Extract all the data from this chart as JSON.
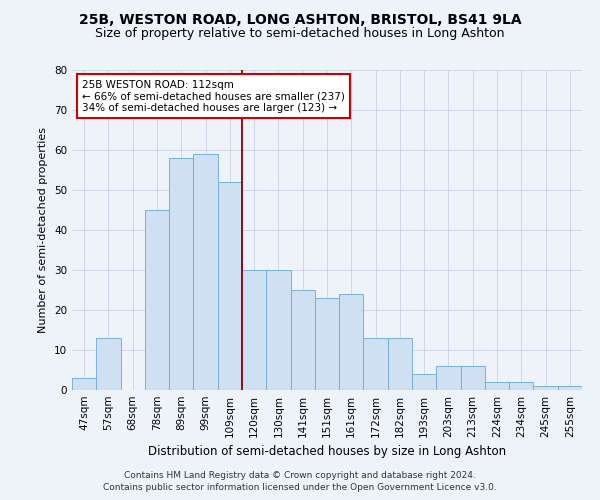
{
  "title": "25B, WESTON ROAD, LONG ASHTON, BRISTOL, BS41 9LA",
  "subtitle": "Size of property relative to semi-detached houses in Long Ashton",
  "xlabel": "Distribution of semi-detached houses by size in Long Ashton",
  "ylabel": "Number of semi-detached properties",
  "footnote1": "Contains HM Land Registry data © Crown copyright and database right 2024.",
  "footnote2": "Contains public sector information licensed under the Open Government Licence v3.0.",
  "bins": [
    "47sqm",
    "57sqm",
    "68sqm",
    "78sqm",
    "89sqm",
    "99sqm",
    "109sqm",
    "120sqm",
    "130sqm",
    "141sqm",
    "151sqm",
    "161sqm",
    "172sqm",
    "182sqm",
    "193sqm",
    "203sqm",
    "213sqm",
    "224sqm",
    "234sqm",
    "245sqm",
    "255sqm"
  ],
  "values": [
    3,
    13,
    0,
    45,
    58,
    59,
    52,
    30,
    30,
    25,
    23,
    24,
    13,
    13,
    4,
    6,
    6,
    2,
    2,
    1,
    1
  ],
  "bar_color": "#cfe0f3",
  "bar_edge_color": "#6aaad4",
  "grid_color": "#c0cce0",
  "vline_color": "#8b0000",
  "annotation_text": "25B WESTON ROAD: 112sqm\n← 66% of semi-detached houses are smaller (237)\n34% of semi-detached houses are larger (123) →",
  "annotation_box_color": "#cc0000",
  "ylim": [
    0,
    80
  ],
  "yticks": [
    0,
    10,
    20,
    30,
    40,
    50,
    60,
    70,
    80
  ],
  "title_fontsize": 10,
  "subtitle_fontsize": 9,
  "xlabel_fontsize": 8.5,
  "ylabel_fontsize": 8,
  "tick_fontsize": 7.5,
  "annot_fontsize": 7.5,
  "footnote_fontsize": 6.5,
  "background_color": "#eef3fa"
}
